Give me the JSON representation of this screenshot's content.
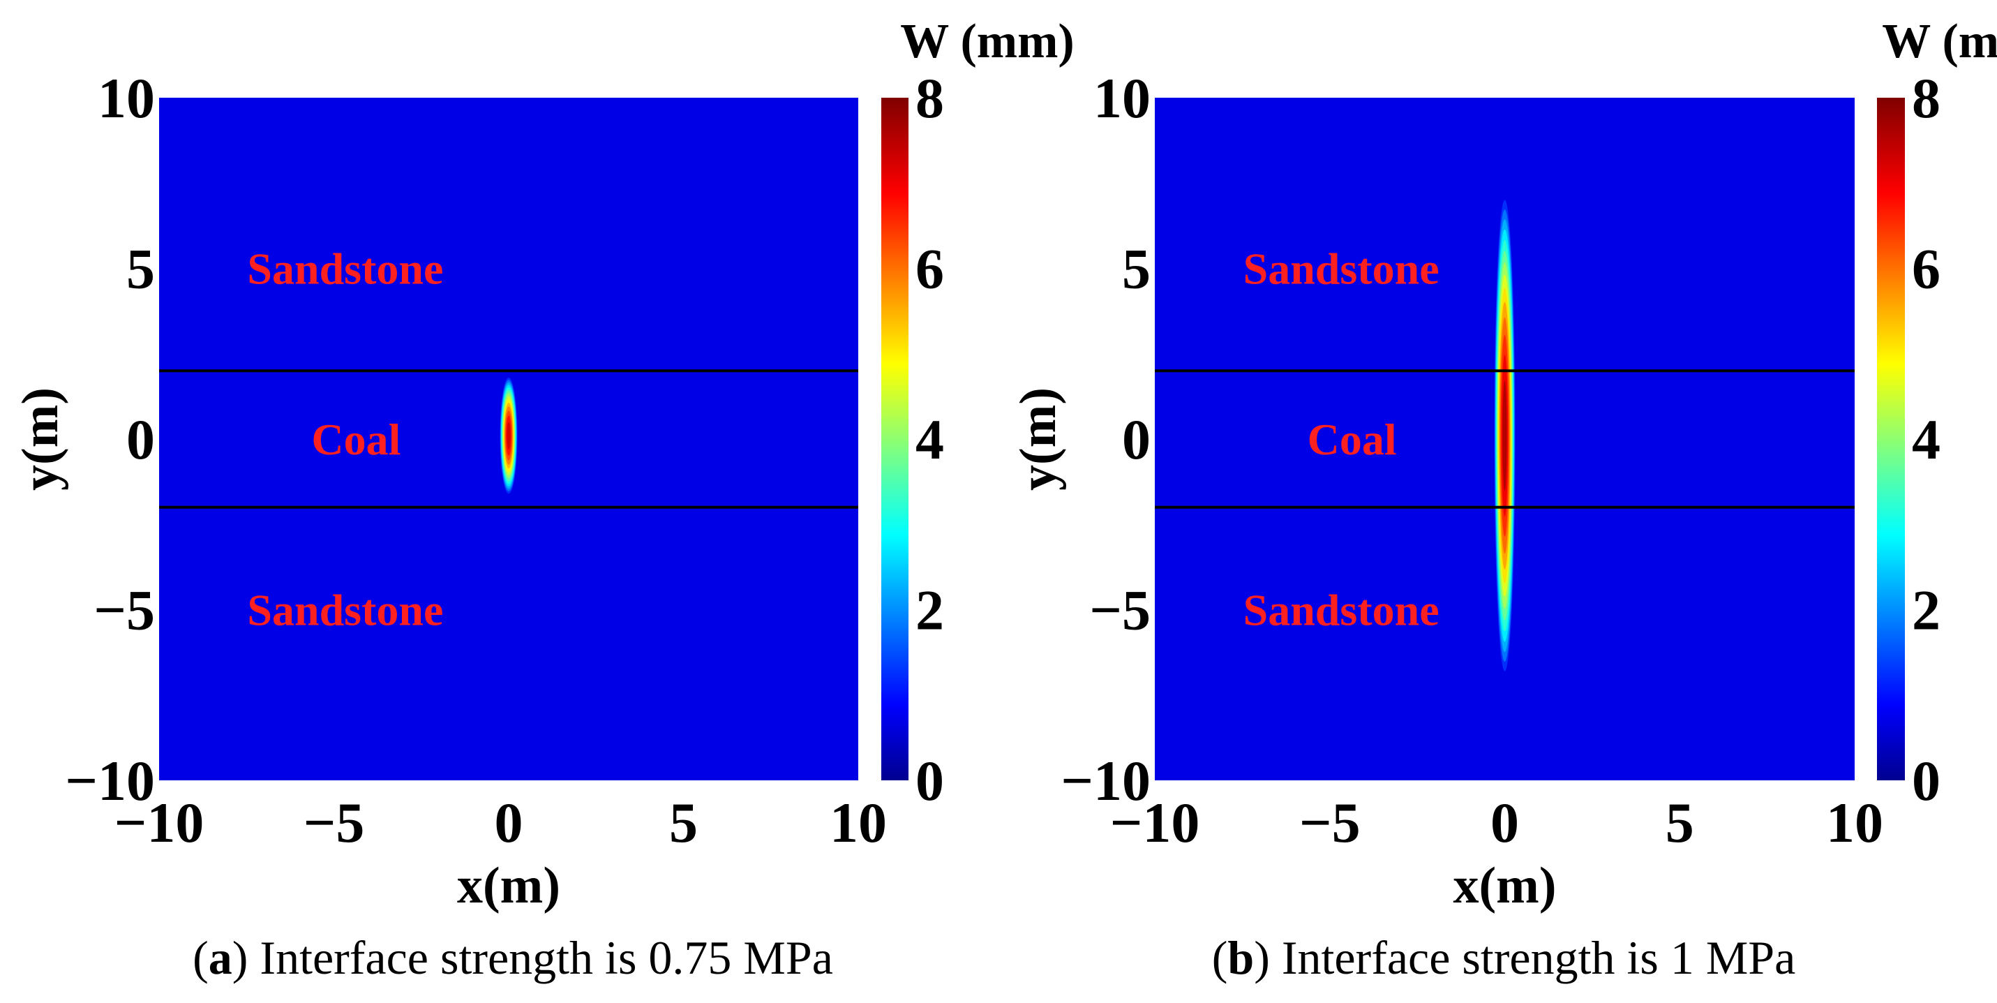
{
  "chart_data": [
    {
      "type": "heatmap",
      "panel_letter": "a",
      "caption": {
        "open": "(",
        "letter": "a",
        "rest": ") Interface strength is 0.75 MPa"
      },
      "xlabel": "x(m)",
      "ylabel": "y(m)",
      "xlim": [
        -10,
        10
      ],
      "ylim": [
        -10,
        10
      ],
      "xticks": [
        "−10",
        "−5",
        "0",
        "5",
        "10"
      ],
      "yticks": [
        "10",
        "5",
        "0",
        "−5",
        "−10"
      ],
      "colorbar": {
        "title": "W (mm)",
        "min": 0,
        "max": 8,
        "ticks": [
          "8",
          "6",
          "4",
          "2",
          "0"
        ]
      },
      "background_value": 0,
      "interfaces_y": [
        2,
        -2
      ],
      "region_labels": [
        {
          "text": "Sandstone",
          "x": -6,
          "y": 5
        },
        {
          "text": "Coal",
          "x": -6,
          "y": 0
        },
        {
          "text": "Sandstone",
          "x": -6,
          "y": -5
        }
      ],
      "fracture": {
        "x": 0,
        "y_min": -1.6,
        "y_max": 1.8,
        "peak_value": 7.5,
        "half_width_m": 0.25
      }
    },
    {
      "type": "heatmap",
      "panel_letter": "b",
      "caption": {
        "open": "(",
        "letter": "b",
        "rest": ") Interface strength is 1 MPa"
      },
      "xlabel": "x(m)",
      "ylabel": "y(m)",
      "xlim": [
        -10,
        10
      ],
      "ylim": [
        -10,
        10
      ],
      "xticks": [
        "−10",
        "−5",
        "0",
        "5",
        "10"
      ],
      "yticks": [
        "10",
        "5",
        "0",
        "−5",
        "−10"
      ],
      "colorbar": {
        "title": "W (mm)",
        "min": 0,
        "max": 8,
        "ticks": [
          "8",
          "6",
          "4",
          "2",
          "0"
        ]
      },
      "background_value": 0,
      "interfaces_y": [
        2,
        -2
      ],
      "region_labels": [
        {
          "text": "Sandstone",
          "x": -6,
          "y": 5
        },
        {
          "text": "Coal",
          "x": -6,
          "y": 0
        },
        {
          "text": "Sandstone",
          "x": -6,
          "y": -5
        }
      ],
      "fracture": {
        "x": 0,
        "y_min": -6.8,
        "y_max": 7.0,
        "peak_value": 7.8,
        "half_width_m": 0.3
      }
    }
  ]
}
